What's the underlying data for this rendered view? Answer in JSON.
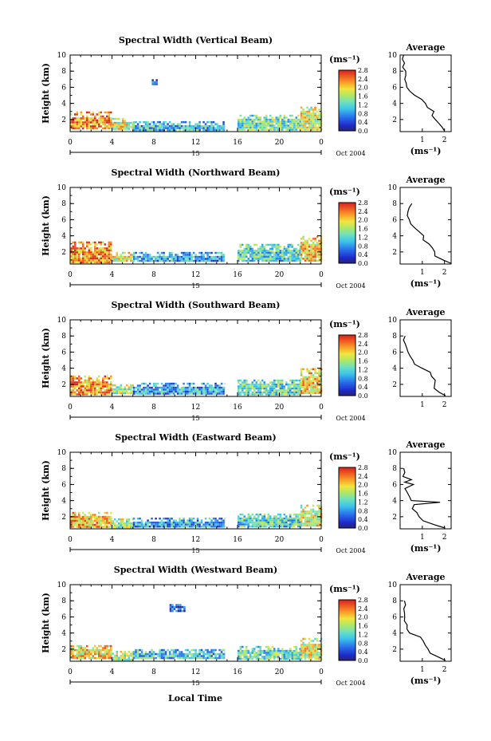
{
  "figure": {
    "xlabel": "Local Time",
    "date_label": "Oct 2004",
    "day_label": "15",
    "units_label": "(ms⁻¹)",
    "average_title": "Average"
  },
  "chart_data": [
    {
      "type": "heatmap",
      "title": "Spectral Width (Vertical Beam)",
      "ylabel": "Height (km)",
      "x_ticks": [
        "0",
        "4",
        "8",
        "12",
        "16",
        "20",
        "0"
      ],
      "y_ticks": [
        "2",
        "4",
        "6",
        "8",
        "10"
      ],
      "xlim": [
        0,
        24
      ],
      "ylim": [
        0.5,
        10
      ],
      "colorbar": {
        "ticks": [
          "2.8",
          "2.4",
          "2.0",
          "1.6",
          "1.2",
          "0.8",
          "0.4",
          "0.0"
        ],
        "range": [
          0,
          2.8
        ]
      },
      "gap": [
        14.8,
        16.0
      ],
      "regions": [
        {
          "x": [
            0,
            4
          ],
          "y": [
            0.8,
            3.0
          ],
          "value": 2.3
        },
        {
          "x": [
            4,
            6
          ],
          "y": [
            0.8,
            2.2
          ],
          "value": 1.8
        },
        {
          "x": [
            6,
            14.8
          ],
          "y": [
            0.8,
            1.8
          ],
          "value": 1.0
        },
        {
          "x": [
            16,
            22
          ],
          "y": [
            0.8,
            2.6
          ],
          "value": 1.4
        },
        {
          "x": [
            22,
            24
          ],
          "y": [
            0.8,
            3.6
          ],
          "value": 1.8
        },
        {
          "x": [
            7.8,
            8.3
          ],
          "y": [
            6.4,
            7.0
          ],
          "value": 0.3
        }
      ],
      "average": {
        "xlabel": "(ms⁻¹)",
        "x_ticks": [
          "1",
          "2"
        ],
        "xlim": [
          0,
          2.3
        ],
        "y_ticks": [
          "2",
          "4",
          "6",
          "8",
          "10"
        ],
        "ylim": [
          0.5,
          10
        ],
        "heights": [
          0.6,
          1.0,
          1.5,
          2.0,
          2.5,
          3.0,
          3.5,
          4.0,
          4.5,
          5.0,
          5.5,
          6.0,
          6.5,
          7.0,
          7.5,
          8.0,
          8.5,
          9.0,
          9.5,
          10.0
        ],
        "values": [
          2.0,
          1.9,
          1.7,
          1.6,
          1.5,
          1.5,
          1.3,
          1.2,
          0.9,
          0.6,
          0.4,
          0.3,
          0.3,
          0.25,
          0.2,
          0.2,
          0.15,
          0.15,
          0.15,
          0.15
        ]
      }
    },
    {
      "type": "heatmap",
      "title": "Spectral Width (Northward Beam)",
      "ylabel": "Height (km)",
      "x_ticks": [
        "0",
        "4",
        "8",
        "12",
        "16",
        "20",
        "0"
      ],
      "y_ticks": [
        "2",
        "4",
        "6",
        "8",
        "10"
      ],
      "xlim": [
        0,
        24
      ],
      "ylim": [
        0.5,
        10
      ],
      "colorbar": {
        "ticks": [
          "2.8",
          "2.4",
          "2.0",
          "1.6",
          "1.2",
          "0.8",
          "0.4",
          "0.0"
        ],
        "range": [
          0,
          2.8
        ]
      },
      "gap": [
        14.8,
        16.0
      ],
      "regions": [
        {
          "x": [
            0,
            4
          ],
          "y": [
            0.8,
            3.3
          ],
          "value": 2.3
        },
        {
          "x": [
            4,
            6
          ],
          "y": [
            0.8,
            2.0
          ],
          "value": 1.8
        },
        {
          "x": [
            6,
            14.8
          ],
          "y": [
            0.8,
            2.0
          ],
          "value": 0.9
        },
        {
          "x": [
            16,
            22
          ],
          "y": [
            0.8,
            3.0
          ],
          "value": 1.2
        },
        {
          "x": [
            22,
            24
          ],
          "y": [
            0.8,
            4.0
          ],
          "value": 2.0
        }
      ],
      "average": {
        "xlabel": "(ms⁻¹)",
        "x_ticks": [
          "1",
          "2"
        ],
        "xlim": [
          0,
          2.3
        ],
        "y_ticks": [
          "2",
          "4",
          "6",
          "8",
          "10"
        ],
        "ylim": [
          0.5,
          10
        ],
        "heights": [
          0.6,
          1.0,
          1.5,
          2.0,
          2.5,
          3.0,
          3.5,
          4.0,
          4.5,
          5.0,
          5.5,
          6.0,
          6.5,
          7.0,
          7.5,
          8.0
        ],
        "values": [
          2.3,
          1.9,
          1.6,
          1.5,
          1.4,
          1.3,
          1.1,
          1.0,
          0.8,
          0.6,
          0.5,
          0.4,
          0.3,
          0.3,
          0.35,
          0.6
        ]
      }
    },
    {
      "type": "heatmap",
      "title": "Spectral Width (Southward Beam)",
      "ylabel": "Height (km)",
      "x_ticks": [
        "0",
        "4",
        "8",
        "12",
        "16",
        "20",
        "0"
      ],
      "y_ticks": [
        "2",
        "4",
        "6",
        "8",
        "10"
      ],
      "xlim": [
        0,
        24
      ],
      "ylim": [
        0.5,
        10
      ],
      "colorbar": {
        "ticks": [
          "2.8",
          "2.4",
          "2.0",
          "1.6",
          "1.2",
          "0.8",
          "0.4",
          "0.0"
        ],
        "range": [
          0,
          2.8
        ]
      },
      "gap": [
        14.8,
        16.0
      ],
      "regions": [
        {
          "x": [
            0,
            4
          ],
          "y": [
            0.8,
            3.1
          ],
          "value": 2.3
        },
        {
          "x": [
            4,
            6
          ],
          "y": [
            0.8,
            2.0
          ],
          "value": 1.6
        },
        {
          "x": [
            6,
            14.8
          ],
          "y": [
            0.8,
            2.2
          ],
          "value": 0.9
        },
        {
          "x": [
            16,
            22
          ],
          "y": [
            0.8,
            2.6
          ],
          "value": 1.3
        },
        {
          "x": [
            22,
            24
          ],
          "y": [
            0.8,
            4.0
          ],
          "value": 2.0
        }
      ],
      "average": {
        "xlabel": "",
        "x_ticks": [
          "1",
          "2"
        ],
        "xlim": [
          0,
          2.3
        ],
        "y_ticks": [
          "2",
          "4",
          "6",
          "8",
          "10"
        ],
        "ylim": [
          0.5,
          10
        ],
        "heights": [
          0.6,
          1.0,
          1.5,
          2.0,
          2.5,
          3.0,
          3.5,
          4.0,
          4.5,
          5.0,
          5.5,
          6.0,
          6.5,
          7.0,
          7.5,
          8.0
        ],
        "values": [
          2.0,
          1.7,
          1.6,
          1.5,
          1.6,
          1.4,
          1.3,
          1.0,
          0.7,
          0.5,
          0.4,
          0.3,
          0.25,
          0.2,
          0.2,
          0.2
        ]
      }
    },
    {
      "type": "heatmap",
      "title": "Spectral Width (Eastward Beam)",
      "ylabel": "Height (km)",
      "x_ticks": [
        "0",
        "4",
        "8",
        "12",
        "16",
        "20",
        "0"
      ],
      "y_ticks": [
        "2",
        "4",
        "6",
        "8",
        "10"
      ],
      "xlim": [
        0,
        24
      ],
      "ylim": [
        0.5,
        10
      ],
      "colorbar": {
        "ticks": [
          "2.8",
          "2.4",
          "2.0",
          "1.6",
          "1.2",
          "0.8",
          "0.4",
          "0.0"
        ],
        "range": [
          0,
          2.8
        ]
      },
      "gap": [
        14.8,
        16.0
      ],
      "regions": [
        {
          "x": [
            0,
            4
          ],
          "y": [
            0.8,
            2.6
          ],
          "value": 2.1
        },
        {
          "x": [
            4,
            6
          ],
          "y": [
            0.8,
            1.8
          ],
          "value": 1.6
        },
        {
          "x": [
            6,
            14.8
          ],
          "y": [
            0.8,
            1.9
          ],
          "value": 0.9
        },
        {
          "x": [
            16,
            22
          ],
          "y": [
            0.8,
            2.4
          ],
          "value": 1.2
        },
        {
          "x": [
            22,
            24
          ],
          "y": [
            0.8,
            3.5
          ],
          "value": 1.8
        }
      ],
      "average": {
        "xlabel": "(ms⁻¹)",
        "x_ticks": [
          "1",
          "2"
        ],
        "xlim": [
          0,
          2.3
        ],
        "y_ticks": [
          "2",
          "4",
          "6",
          "8",
          "10"
        ],
        "ylim": [
          0.5,
          10
        ],
        "heights": [
          0.6,
          1.0,
          1.5,
          2.0,
          2.5,
          3.0,
          3.5,
          3.8,
          4.0,
          4.5,
          5.0,
          5.5,
          6.0,
          6.3,
          6.6,
          7.0,
          7.5,
          8.0
        ],
        "values": [
          2.0,
          1.5,
          1.0,
          0.8,
          0.7,
          0.6,
          0.6,
          1.8,
          0.5,
          0.4,
          0.3,
          0.25,
          0.6,
          0.2,
          0.5,
          0.2,
          0.2,
          0.2
        ]
      }
    },
    {
      "type": "heatmap",
      "title": "Spectral Width (Westward Beam)",
      "ylabel": "Height (km)",
      "x_ticks": [
        "0",
        "4",
        "8",
        "12",
        "16",
        "20",
        "0"
      ],
      "y_ticks": [
        "2",
        "4",
        "6",
        "8",
        "10"
      ],
      "xlim": [
        0,
        24
      ],
      "ylim": [
        0.5,
        10
      ],
      "colorbar": {
        "ticks": [
          "2.8",
          "2.4",
          "2.0",
          "1.6",
          "1.2",
          "0.8",
          "0.4",
          "0.0"
        ],
        "range": [
          0,
          2.8
        ]
      },
      "gap": [
        14.8,
        16.0
      ],
      "regions": [
        {
          "x": [
            0,
            4
          ],
          "y": [
            0.8,
            2.5
          ],
          "value": 2.0
        },
        {
          "x": [
            4,
            6
          ],
          "y": [
            0.8,
            1.8
          ],
          "value": 1.6
        },
        {
          "x": [
            6,
            14.8
          ],
          "y": [
            0.8,
            2.0
          ],
          "value": 1.0
        },
        {
          "x": [
            16,
            22
          ],
          "y": [
            0.8,
            2.4
          ],
          "value": 1.3
        },
        {
          "x": [
            22,
            24
          ],
          "y": [
            0.8,
            3.4
          ],
          "value": 1.8
        },
        {
          "x": [
            9.5,
            11
          ],
          "y": [
            6.8,
            7.6
          ],
          "value": 0.4
        }
      ],
      "average": {
        "xlabel": "(ms⁻¹)",
        "x_ticks": [
          "1",
          "2"
        ],
        "xlim": [
          0,
          2.3
        ],
        "y_ticks": [
          "2",
          "4",
          "6",
          "8",
          "10"
        ],
        "ylim": [
          0.5,
          10
        ],
        "heights": [
          0.6,
          1.0,
          1.5,
          2.0,
          2.5,
          3.0,
          3.5,
          4.0,
          4.5,
          5.0,
          5.5,
          6.0,
          6.5,
          7.0,
          7.5,
          8.0
        ],
        "values": [
          2.0,
          1.7,
          1.4,
          1.2,
          1.1,
          1.0,
          0.9,
          0.5,
          0.35,
          0.3,
          0.25,
          0.25,
          0.2,
          0.2,
          0.2,
          0.2
        ]
      }
    }
  ]
}
